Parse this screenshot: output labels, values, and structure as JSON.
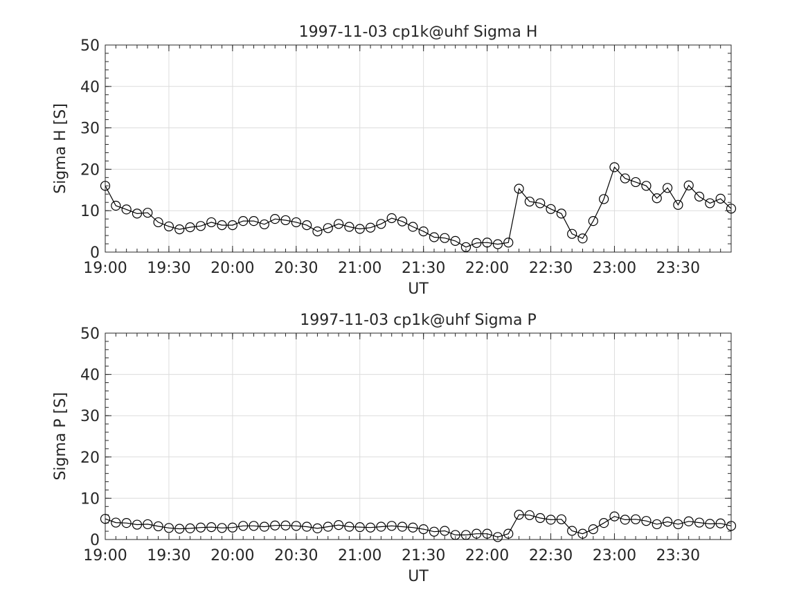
{
  "chart_data": [
    {
      "type": "line",
      "title": "1997-11-03  cp1k@uhf Sigma H",
      "xlabel": "UT",
      "ylabel": "Sigma H [S]",
      "x_tick_labels": [
        "19:00",
        "19:30",
        "20:00",
        "20:30",
        "21:00",
        "21:30",
        "22:00",
        "22:30",
        "23:00",
        "23:30"
      ],
      "y_tick_labels": [
        "0",
        "10",
        "20",
        "30",
        "40",
        "50"
      ],
      "xlim": [
        "19:00",
        "23:55"
      ],
      "ylim": [
        0,
        50
      ],
      "grid": true,
      "marker": "open-circle",
      "line_color": "#000000",
      "x": [
        "19:00",
        "19:05",
        "19:10",
        "19:15",
        "19:20",
        "19:25",
        "19:30",
        "19:35",
        "19:40",
        "19:45",
        "19:50",
        "19:55",
        "20:00",
        "20:05",
        "20:10",
        "20:15",
        "20:20",
        "20:25",
        "20:30",
        "20:35",
        "20:40",
        "20:45",
        "20:50",
        "20:55",
        "21:00",
        "21:05",
        "21:10",
        "21:15",
        "21:20",
        "21:25",
        "21:30",
        "21:35",
        "21:40",
        "21:45",
        "21:50",
        "21:55",
        "22:00",
        "22:05",
        "22:10",
        "22:15",
        "22:20",
        "22:25",
        "22:30",
        "22:35",
        "22:40",
        "22:45",
        "22:50",
        "22:55",
        "23:00",
        "23:05",
        "23:10",
        "23:15",
        "23:20",
        "23:25",
        "23:30",
        "23:35",
        "23:40",
        "23:45",
        "23:50",
        "23:55"
      ],
      "values": [
        16,
        11.2,
        10.3,
        9.3,
        9.5,
        7.2,
        6.2,
        5.5,
        6,
        6.3,
        7.2,
        6.5,
        6.5,
        7.5,
        7.5,
        6.7,
        8,
        7.7,
        7.2,
        6.5,
        5,
        5.8,
        6.8,
        6.1,
        5.6,
        5.9,
        6.8,
        8.2,
        7.4,
        6.1,
        5,
        3.6,
        3.4,
        2.7,
        1.2,
        2.2,
        2.3,
        1.9,
        2.3,
        15.3,
        12.2,
        11.8,
        10.4,
        9.3,
        4.4,
        3.3,
        7.5,
        12.8,
        20.5,
        17.8,
        16.9,
        16,
        13,
        15.5,
        11.4,
        16.1,
        13.4,
        11.8,
        12.9,
        10.5
      ]
    },
    {
      "type": "line",
      "title": "1997-11-03  cp1k@uhf Sigma P",
      "xlabel": "UT",
      "ylabel": "Sigma P [S]",
      "x_tick_labels": [
        "19:00",
        "19:30",
        "20:00",
        "20:30",
        "21:00",
        "21:30",
        "22:00",
        "22:30",
        "23:00",
        "23:30"
      ],
      "y_tick_labels": [
        "0",
        "10",
        "20",
        "30",
        "40",
        "50"
      ],
      "xlim": [
        "19:00",
        "23:55"
      ],
      "ylim": [
        0,
        50
      ],
      "grid": true,
      "marker": "open-circle",
      "line_color": "#000000",
      "x": [
        "19:00",
        "19:05",
        "19:10",
        "19:15",
        "19:20",
        "19:25",
        "19:30",
        "19:35",
        "19:40",
        "19:45",
        "19:50",
        "19:55",
        "20:00",
        "20:05",
        "20:10",
        "20:15",
        "20:20",
        "20:25",
        "20:30",
        "20:35",
        "20:40",
        "20:45",
        "20:50",
        "20:55",
        "21:00",
        "21:05",
        "21:10",
        "21:15",
        "21:20",
        "21:25",
        "21:30",
        "21:35",
        "21:40",
        "21:45",
        "21:50",
        "21:55",
        "22:00",
        "22:05",
        "22:10",
        "22:15",
        "22:20",
        "22:25",
        "22:30",
        "22:35",
        "22:40",
        "22:45",
        "22:50",
        "22:55",
        "23:00",
        "23:05",
        "23:10",
        "23:15",
        "23:20",
        "23:25",
        "23:30",
        "23:35",
        "23:40",
        "23:45",
        "23:50",
        "23:55"
      ],
      "values": [
        5,
        4.1,
        4,
        3.6,
        3.7,
        3.2,
        2.8,
        2.6,
        2.7,
        2.9,
        3,
        2.8,
        2.9,
        3.3,
        3.3,
        3.1,
        3.4,
        3.4,
        3.3,
        3.1,
        2.7,
        3.1,
        3.5,
        3.1,
        3,
        2.9,
        3.1,
        3.3,
        3.1,
        2.9,
        2.5,
        1.9,
        2.1,
        1.1,
        1.1,
        1.4,
        1.4,
        0.6,
        1.4,
        6,
        5.9,
        5.2,
        4.8,
        4.9,
        2.1,
        1.4,
        2.5,
        4,
        5.6,
        4.8,
        4.9,
        4.5,
        3.7,
        4.3,
        3.7,
        4.4,
        4.1,
        3.8,
        3.9,
        3.3
      ]
    }
  ]
}
